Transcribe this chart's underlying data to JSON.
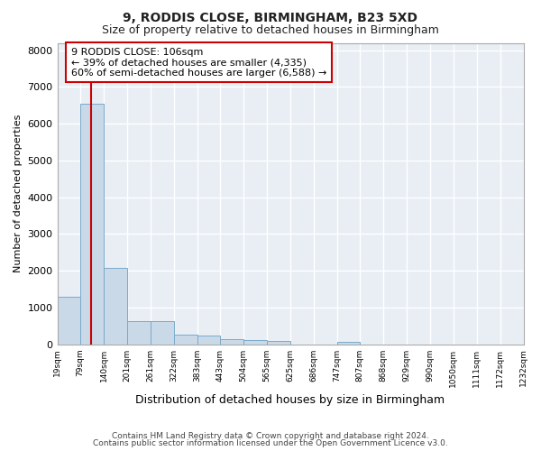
{
  "title1": "9, RODDIS CLOSE, BIRMINGHAM, B23 5XD",
  "title2": "Size of property relative to detached houses in Birmingham",
  "xlabel": "Distribution of detached houses by size in Birmingham",
  "ylabel": "Number of detached properties",
  "footer1": "Contains HM Land Registry data © Crown copyright and database right 2024.",
  "footer2": "Contains public sector information licensed under the Open Government Licence v3.0.",
  "bar_color": "#c9d9e8",
  "bar_edge_color": "#7aaacb",
  "annotation_box_edge": "#cc0000",
  "annotation_line_color": "#cc0000",
  "annotation_text": "9 RODDIS CLOSE: 106sqm\n← 39% of detached houses are smaller (4,335)\n60% of semi-detached houses are larger (6,588) →",
  "subject_size": 106,
  "bins": [
    19,
    79,
    140,
    201,
    261,
    322,
    383,
    443,
    504,
    565,
    625,
    686,
    747,
    807,
    868,
    929,
    990,
    1050,
    1111,
    1172,
    1232
  ],
  "counts": [
    1300,
    6550,
    2080,
    640,
    640,
    250,
    230,
    130,
    110,
    80,
    0,
    0,
    60,
    0,
    0,
    0,
    0,
    0,
    0,
    0
  ],
  "ylim": [
    0,
    8200
  ],
  "yticks": [
    0,
    1000,
    2000,
    3000,
    4000,
    5000,
    6000,
    7000,
    8000
  ],
  "bg_color": "#e8eef4",
  "grid_color": "#ffffff",
  "tick_labels": [
    "19sqm",
    "79sqm",
    "140sqm",
    "201sqm",
    "261sqm",
    "322sqm",
    "383sqm",
    "443sqm",
    "504sqm",
    "565sqm",
    "625sqm",
    "686sqm",
    "747sqm",
    "807sqm",
    "868sqm",
    "929sqm",
    "990sqm",
    "1050sqm",
    "1111sqm",
    "1172sqm",
    "1232sqm"
  ],
  "title1_fontsize": 10,
  "title2_fontsize": 9,
  "ylabel_fontsize": 8,
  "xlabel_fontsize": 9,
  "footer_fontsize": 6.5,
  "annotation_fontsize": 8
}
